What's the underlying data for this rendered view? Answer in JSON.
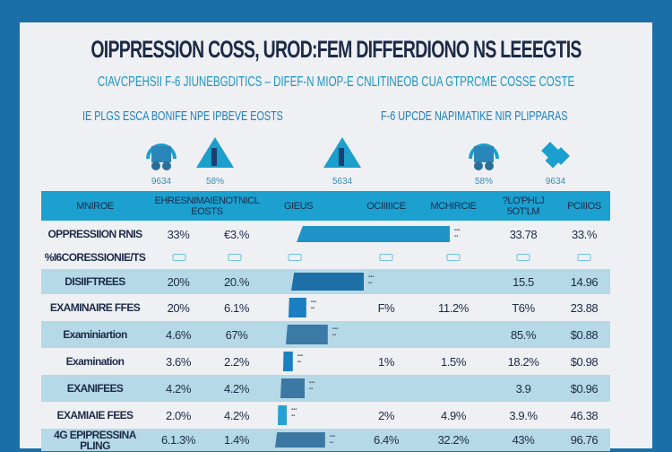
{
  "title": "OIPPRESSION COSS, UROD:FEM DIFFERDIONO NS LEEEGTIS",
  "subtitle": "CIAVCPEHSII F-6 JIUNEBGDITICS  –  DIFEF-N MIOP-E CNLITINEOB CUA GTPRCME COSSE COSTE",
  "sections": [
    "IE PLGS ESCA BONIFE NPE IPBEVE EOSTS",
    "F-6 UPCDE NAPIMATIKE NIR PLIPPARAS"
  ],
  "icon_row": [
    {
      "icon": "headphones-cart-icon",
      "pct": "9634"
    },
    {
      "icon": "building-icon",
      "pct": "58%"
    },
    {
      "icon": "building-icon",
      "pct": "5634"
    },
    {
      "icon": "headphones-cart-icon",
      "pct": "58%"
    },
    {
      "icon": "puzzle-icon",
      "pct": "9634"
    }
  ],
  "headers": [
    "MNIROE",
    "EHRESNIMAIENOTNICL EOSTS",
    "GIEUS",
    "OCIIIIICE",
    "MCHIRCIE",
    "?LO'PHLJ 5OT'LM",
    "PCIIIOS"
  ],
  "rows": [
    {
      "label": "OPPRESSIION RNIS",
      "c1": "33%",
      "c2": "€3.%",
      "bar": 0.95,
      "bar_color": "#1f93c6",
      "c4": "",
      "c5": "",
      "c6": "33.78",
      "c7": "33.%"
    },
    {
      "label": "%I6CORESSIONIE/TS",
      "checks": true
    },
    {
      "label": "DISIIFTREES",
      "c1": "20%",
      "c2": "20.%",
      "bar": 0.45,
      "bar_color": "#1d6fa8",
      "c4": "",
      "c5": "",
      "c6": "15.5",
      "c7": "14.96"
    },
    {
      "label": "EXAMINAIRE FFES",
      "c1": "20%",
      "c2": "6.1%",
      "bar": 0.11,
      "bar_color": "#1a7fc0",
      "c4": "F%",
      "c5": "11.2%",
      "c6": "T6%",
      "c7": "23.88"
    },
    {
      "label": "Examiniartion",
      "c1": "4.6%",
      "c2": "67%",
      "bar": 0.26,
      "bar_color": "#3b7aa6",
      "c4": "",
      "c5": "",
      "c6": "85.%",
      "c7": "$0.88"
    },
    {
      "label": "Examination",
      "c1": "3.6%",
      "c2": "2.2%",
      "bar": 0.06,
      "bar_color": "#1a80c0",
      "c4": "1%",
      "c5": "1.5%",
      "c6": "18.2%",
      "c7": "$0.98"
    },
    {
      "label": "EXANIFEES",
      "c1": "4.2%",
      "c2": "4.2%",
      "bar": 0.15,
      "bar_color": "#3b78a4",
      "c4": "",
      "c5": "",
      "c6": "3.9",
      "c7": "$0.96"
    },
    {
      "label": "EXAMIAIE FEES",
      "c1": "2.0%",
      "c2": "4.2%",
      "bar": 0.05,
      "bar_color": "#25a2d2",
      "c4": "2%",
      "c5": "4.9%",
      "c6": "3.9.%",
      "c7": "46.38"
    },
    {
      "label": "4G EPIPRESSINA PLING",
      "c1": "6.1.3%",
      "c2": "1.4%",
      "bar": 0.31,
      "bar_color": "#3b78a4",
      "c4": "6.4%",
      "c5": "32.2%",
      "c6": "43%",
      "c7": "96.76"
    }
  ]
}
